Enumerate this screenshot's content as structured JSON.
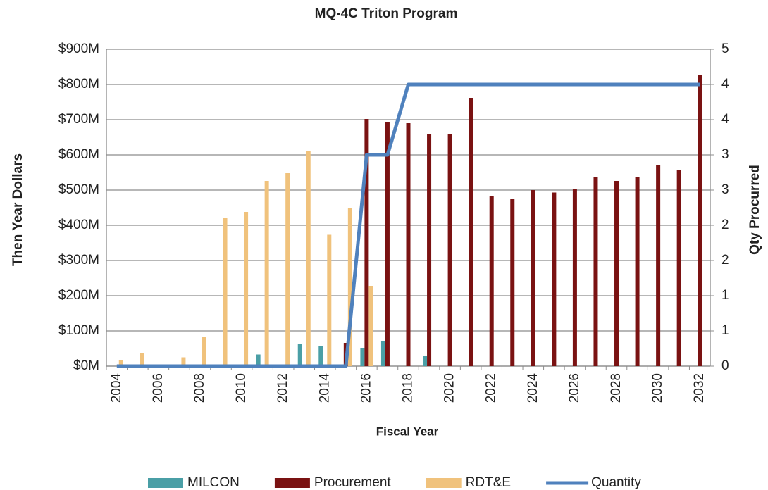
{
  "chart_data": {
    "type": "bar",
    "title": "MQ-4C Triton Program",
    "x_label": "Fiscal Year",
    "y_label": "Then Year Dollars",
    "y2_label": "Qty Procurred",
    "categories": [
      "2004",
      null,
      "2006",
      null,
      "2008",
      null,
      "2010",
      null,
      "2012",
      null,
      "2014",
      null,
      "2016",
      null,
      "2018",
      null,
      "2020",
      null,
      "2022",
      null,
      "2024",
      null,
      "2026",
      null,
      "2028",
      null,
      "2030",
      null,
      "2032"
    ],
    "ylim": [
      0,
      900
    ],
    "yticks": [
      {
        "value": 0,
        "label": "$0M"
      },
      {
        "value": 100,
        "label": "$100M"
      },
      {
        "value": 200,
        "label": "$200M"
      },
      {
        "value": 300,
        "label": "$300M"
      },
      {
        "value": 400,
        "label": "$400M"
      },
      {
        "value": 500,
        "label": "$500M"
      },
      {
        "value": 600,
        "label": "$600M"
      },
      {
        "value": 700,
        "label": "$700M"
      },
      {
        "value": 800,
        "label": "$800M"
      },
      {
        "value": 900,
        "label": "$900M"
      }
    ],
    "y2lim": [
      0,
      4.5
    ],
    "y2ticks": [
      0,
      {
        "value": 0.5,
        "label": "1"
      },
      1,
      {
        "value": 1.5,
        "label": "2"
      },
      2,
      {
        "value": 2.5,
        "label": "3"
      },
      3,
      {
        "value": 3.5,
        "label": "4"
      },
      4,
      {
        "value": 4.5,
        "label": "5"
      }
    ],
    "grid": true,
    "legend": "bottom",
    "series": [
      {
        "name": "MILCON",
        "color": "#4a9fa6",
        "values": [
          0,
          0,
          0,
          0,
          0,
          0,
          0,
          33,
          0,
          64,
          56,
          0,
          50,
          70,
          0,
          28,
          0,
          0,
          0,
          0,
          0,
          0,
          0,
          0,
          0,
          0,
          0,
          0,
          0
        ]
      },
      {
        "name": "Procurement",
        "color": "#7a1212",
        "values": [
          0,
          0,
          0,
          0,
          0,
          0,
          0,
          0,
          0,
          0,
          0,
          66,
          702,
          692,
          690,
          660,
          660,
          762,
          482,
          475,
          500,
          493,
          502,
          536,
          526,
          536,
          572,
          556,
          826
        ]
      },
      {
        "name": "RDT&E",
        "color": "#f0c27c",
        "values": [
          17,
          38,
          0,
          25,
          82,
          420,
          438,
          526,
          548,
          612,
          373,
          450,
          228,
          0,
          0,
          0,
          0,
          0,
          0,
          0,
          0,
          0,
          0,
          0,
          0,
          0,
          0,
          0,
          0
        ]
      },
      {
        "name": "Quantity",
        "type": "line",
        "axis": "y2",
        "color": "#4f81bd",
        "values": [
          0,
          0,
          0,
          0,
          0,
          0,
          0,
          0,
          0,
          0,
          0,
          0,
          3,
          3,
          4,
          4,
          4,
          4,
          4,
          4,
          4,
          4,
          4,
          4,
          4,
          4,
          4,
          4,
          4
        ]
      }
    ]
  }
}
